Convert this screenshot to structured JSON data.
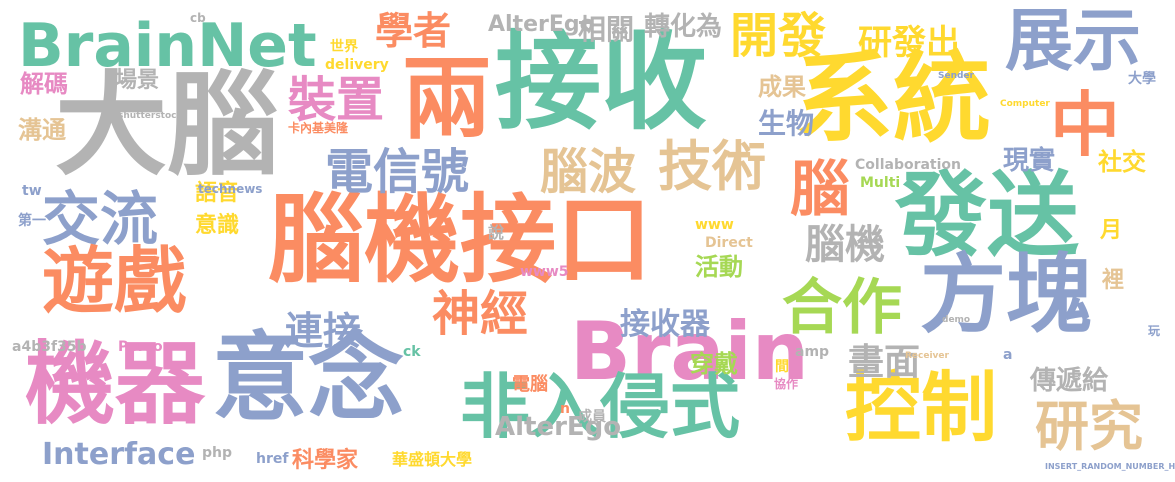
{
  "palette": {
    "orange": "#fb8c62",
    "teal": "#66c2a5",
    "blue": "#8da0cb",
    "pink": "#e78ac3",
    "green": "#a6d854",
    "yellow": "#ffd92f",
    "tan": "#e5c494",
    "gray": "#b3b3b3"
  },
  "words": [
    {
      "text": "腦機接口",
      "color": "orange"
    },
    {
      "text": "大腦",
      "color": "gray"
    },
    {
      "text": "接收",
      "color": "teal"
    },
    {
      "text": "系統",
      "color": "yellow"
    },
    {
      "text": "意念",
      "color": "blue"
    },
    {
      "text": "機器",
      "color": "pink"
    },
    {
      "text": "兩",
      "color": "orange"
    },
    {
      "text": "發送",
      "color": "teal"
    },
    {
      "text": "方塊",
      "color": "blue"
    },
    {
      "text": "Brain",
      "color": "pink"
    },
    {
      "text": "遊戲",
      "color": "orange"
    },
    {
      "text": "BrainNet",
      "color": "teal"
    },
    {
      "text": "控制",
      "color": "yellow"
    },
    {
      "text": "非入侵式",
      "color": "teal"
    },
    {
      "text": "中",
      "color": "orange"
    },
    {
      "text": "展示",
      "color": "blue"
    },
    {
      "text": "合作",
      "color": "green"
    },
    {
      "text": "交流",
      "color": "blue"
    },
    {
      "text": "研究",
      "color": "tan"
    },
    {
      "text": "技術",
      "color": "tan"
    },
    {
      "text": "電信號",
      "color": "blue"
    },
    {
      "text": "裝置",
      "color": "pink"
    },
    {
      "text": "開發",
      "color": "yellow"
    },
    {
      "text": "腦波",
      "color": "tan"
    },
    {
      "text": "腦",
      "color": "orange"
    },
    {
      "text": "神經",
      "color": "orange"
    },
    {
      "text": "連接",
      "color": "blue"
    },
    {
      "text": "學者",
      "color": "orange"
    },
    {
      "text": "研發出",
      "color": "yellow"
    },
    {
      "text": "Interface",
      "color": "blue"
    },
    {
      "text": "接收器",
      "color": "blue"
    },
    {
      "text": "腦機",
      "color": "gray"
    },
    {
      "text": "畫面",
      "color": "gray"
    },
    {
      "text": "轉化為",
      "color": "gray"
    },
    {
      "text": "相關",
      "color": "gray"
    },
    {
      "text": "AlterEgo",
      "color": "gray"
    },
    {
      "text": "生物",
      "color": "blue"
    },
    {
      "text": "成果",
      "color": "tan"
    },
    {
      "text": "現實",
      "color": "blue"
    },
    {
      "text": "社交",
      "color": "yellow"
    },
    {
      "text": "傳遞給",
      "color": "gray"
    },
    {
      "text": "穿戴",
      "color": "green"
    },
    {
      "text": "活動",
      "color": "green"
    },
    {
      "text": "AlterEgo",
      "color": "gray"
    },
    {
      "text": "語音",
      "color": "yellow"
    },
    {
      "text": "意識",
      "color": "yellow"
    },
    {
      "text": "科學家",
      "color": "orange"
    },
    {
      "text": "華盛頓大學",
      "color": "yellow"
    },
    {
      "text": "卡內基美隆",
      "color": "orange"
    },
    {
      "text": "電腦",
      "color": "orange"
    },
    {
      "text": "場景",
      "color": "gray"
    },
    {
      "text": "解碼",
      "color": "pink"
    },
    {
      "text": "溝通",
      "color": "tan"
    },
    {
      "text": "世界",
      "color": "yellow"
    },
    {
      "text": "delivery",
      "color": "yellow"
    },
    {
      "text": "Collaboration",
      "color": "gray"
    },
    {
      "text": "Multi",
      "color": "green"
    },
    {
      "text": "Direct",
      "color": "tan"
    },
    {
      "text": "www5",
      "color": "pink"
    },
    {
      "text": "www",
      "color": "yellow"
    },
    {
      "text": "technews",
      "color": "blue"
    },
    {
      "text": "a4b3f35b",
      "color": "gray"
    },
    {
      "text": "Person",
      "color": "pink"
    },
    {
      "text": "php",
      "color": "gray"
    },
    {
      "text": "href",
      "color": "blue"
    },
    {
      "text": "amp",
      "color": "gray"
    },
    {
      "text": "ck",
      "color": "teal"
    },
    {
      "text": "tw",
      "color": "blue"
    },
    {
      "text": "第一",
      "color": "blue"
    },
    {
      "text": "月",
      "color": "yellow"
    },
    {
      "text": "裡",
      "color": "tan"
    },
    {
      "text": "說",
      "color": "gray"
    },
    {
      "text": "大學",
      "color": "blue"
    },
    {
      "text": "協作",
      "color": "pink"
    },
    {
      "text": "成員",
      "color": "gray"
    },
    {
      "text": "間",
      "color": "yellow"
    },
    {
      "text": "n",
      "color": "orange"
    },
    {
      "text": "a",
      "color": "blue"
    },
    {
      "text": "玩",
      "color": "blue"
    },
    {
      "text": "cb",
      "color": "gray"
    },
    {
      "text": "shutterstock",
      "color": "gray"
    },
    {
      "text": "Sender",
      "color": "blue"
    },
    {
      "text": "Computer",
      "color": "yellow"
    },
    {
      "text": "Receiver",
      "color": "tan"
    },
    {
      "text": "demo",
      "color": "gray"
    },
    {
      "text": "INSERT_RANDOM_NUMBER_HE",
      "color": "blue"
    }
  ]
}
